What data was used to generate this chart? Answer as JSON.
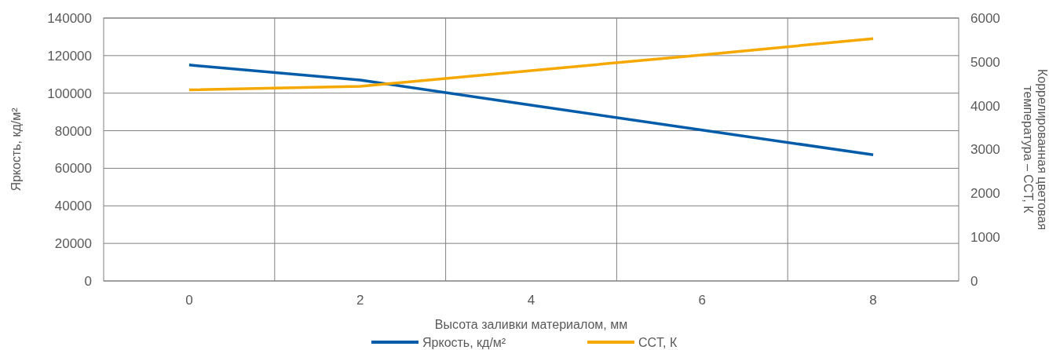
{
  "chart_data": {
    "type": "line",
    "xlabel": "Высота заливки материалом, мм",
    "ylabel": "Яркость, кд/м²",
    "y2label": "Коррелированная цветовая температура – CCT, К",
    "categories": [
      "0",
      "2",
      "4",
      "6",
      "8"
    ],
    "series": [
      {
        "name": "Яркость, кд/м²",
        "color": "#005ca9",
        "values": [
          115000,
          107000,
          93600,
          80300,
          67200
        ]
      },
      {
        "name": "CCT, К",
        "color": "#f5a800",
        "axis": "y2",
        "values": [
          4360,
          4440,
          4800,
          5160,
          5530
        ]
      }
    ],
    "ylim": [
      0,
      140000
    ],
    "yticks": [
      0,
      20000,
      40000,
      60000,
      80000,
      100000,
      120000,
      140000
    ],
    "y2lim": [
      0,
      6000
    ],
    "y2ticks": [
      0,
      1000,
      2000,
      3000,
      4000,
      5000,
      6000
    ],
    "grid": true,
    "legend": "bottom",
    "marker": "none",
    "line_style": "solid"
  }
}
